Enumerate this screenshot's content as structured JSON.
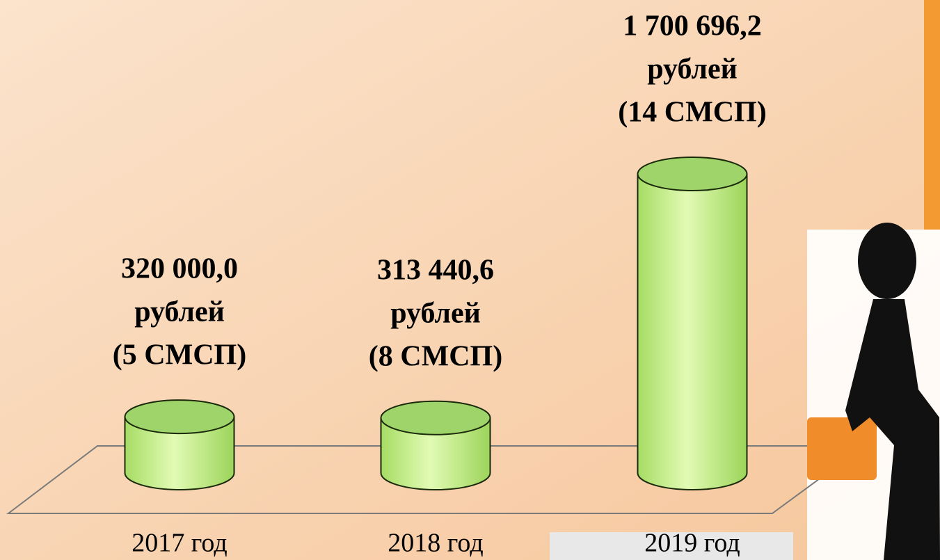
{
  "chart_data": {
    "type": "bar",
    "categories": [
      "2017 год",
      "2018 год",
      "2019 год"
    ],
    "values": [
      320000.0,
      313440.6,
      1700696.2
    ],
    "value_labels": [
      "320 000,0",
      "313 440,6",
      "1 700 696,2"
    ],
    "annotations": [
      [
        "рублей",
        "(5 СМСП)"
      ],
      [
        "рублей",
        "(8 СМСП)"
      ],
      [
        "рублей",
        "(14 СМСП)"
      ]
    ],
    "color": "#b8ec7c"
  }
}
